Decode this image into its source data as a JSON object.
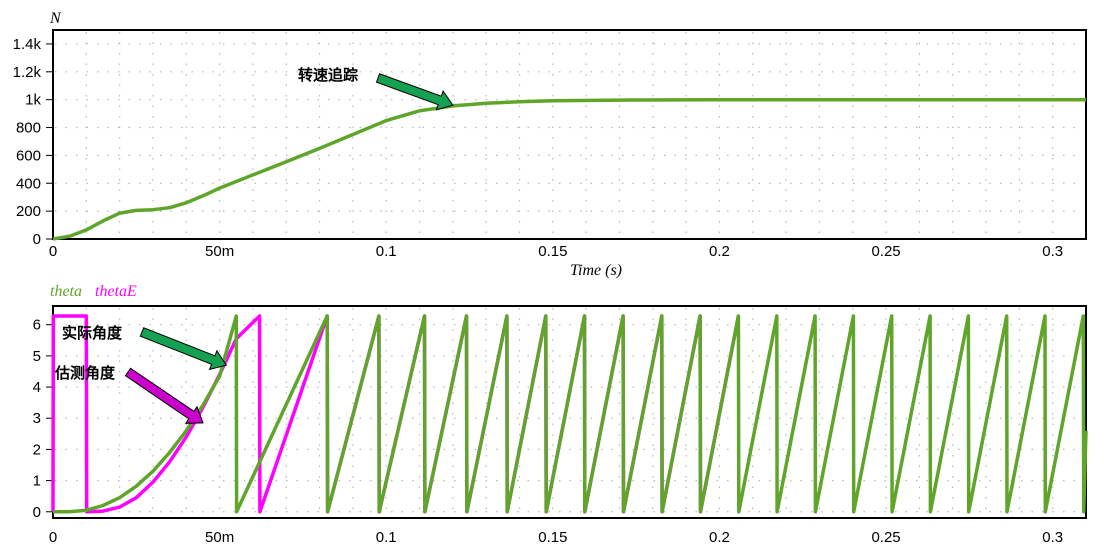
{
  "chart_data": [
    {
      "type": "line",
      "ylabel": "N",
      "xlabel": "Time (s)",
      "xlim": [
        0,
        0.31
      ],
      "ylim": [
        0,
        1500
      ],
      "x_ticks": [
        {
          "value": 0,
          "label": "0"
        },
        {
          "value": 0.05,
          "label": "50m"
        },
        {
          "value": 0.1,
          "label": "0.1"
        },
        {
          "value": 0.15,
          "label": "0.15"
        },
        {
          "value": 0.2,
          "label": "0.2"
        },
        {
          "value": 0.25,
          "label": "0.25"
        },
        {
          "value": 0.3,
          "label": "0.3"
        }
      ],
      "y_ticks": [
        {
          "value": 0,
          "label": "0"
        },
        {
          "value": 200,
          "label": "200"
        },
        {
          "value": 400,
          "label": "400"
        },
        {
          "value": 600,
          "label": "600"
        },
        {
          "value": 800,
          "label": "800"
        },
        {
          "value": 1000,
          "label": "1k"
        },
        {
          "value": 1200,
          "label": "1.2k"
        },
        {
          "value": 1400,
          "label": "1.4k"
        }
      ],
      "grid": "dotted",
      "series": [
        {
          "name": "N",
          "color": "#5fa52a",
          "x": [
            0,
            0.005,
            0.01,
            0.015,
            0.02,
            0.025,
            0.03,
            0.035,
            0.04,
            0.045,
            0.05,
            0.06,
            0.07,
            0.08,
            0.09,
            0.1,
            0.11,
            0.12,
            0.13,
            0.14,
            0.15,
            0.17,
            0.2,
            0.25,
            0.31
          ],
          "y": [
            0,
            20,
            65,
            130,
            185,
            205,
            210,
            225,
            260,
            310,
            365,
            460,
            555,
            650,
            750,
            850,
            920,
            955,
            975,
            985,
            992,
            997,
            1000,
            1000,
            1000
          ]
        }
      ],
      "annotations": [
        {
          "text": "转速追踪",
          "target": [
            0.12,
            960
          ],
          "arrow_color": "#14a152"
        }
      ]
    },
    {
      "type": "line",
      "legend": [
        "theta",
        "thetaE"
      ],
      "legend_position": "top-left",
      "xlim": [
        0,
        0.31
      ],
      "ylim": [
        -0.2,
        6.6
      ],
      "x_ticks": [
        {
          "value": 0,
          "label": "0"
        },
        {
          "value": 0.05,
          "label": "50m"
        },
        {
          "value": 0.1,
          "label": "0.1"
        },
        {
          "value": 0.15,
          "label": "0.15"
        },
        {
          "value": 0.2,
          "label": "0.2"
        },
        {
          "value": 0.25,
          "label": "0.25"
        },
        {
          "value": 0.3,
          "label": "0.3"
        }
      ],
      "y_ticks": [
        {
          "value": 0,
          "label": "0"
        },
        {
          "value": 1,
          "label": "1"
        },
        {
          "value": 2,
          "label": "2"
        },
        {
          "value": 3,
          "label": "3"
        },
        {
          "value": 4,
          "label": "4"
        },
        {
          "value": 5,
          "label": "5"
        },
        {
          "value": 6,
          "label": "6"
        }
      ],
      "grid": "dotted",
      "series": [
        {
          "name": "theta",
          "color": "#5fa52a",
          "x": [
            0,
            0.005,
            0.01,
            0.015,
            0.02,
            0.025,
            0.03,
            0.035,
            0.04,
            0.045,
            0.05,
            0.055,
            0.0551,
            0.0823,
            0.0824,
            0.0978,
            0.0979,
            0.1115,
            0.1116,
            0.1241,
            0.1242,
            0.1362,
            0.1363,
            0.1479,
            0.148,
            0.1595,
            0.1596,
            0.1711,
            0.1712,
            0.1827,
            0.1828,
            0.1942,
            0.1943,
            0.2057,
            0.2058,
            0.2172,
            0.2173,
            0.2287,
            0.2288,
            0.2402,
            0.2403,
            0.2517,
            0.2518,
            0.2632,
            0.2633,
            0.2747,
            0.2748,
            0.2862,
            0.2863,
            0.2977,
            0.2978,
            0.3092,
            0.3093,
            0.31
          ],
          "y": [
            0,
            0,
            0.05,
            0.2,
            0.45,
            0.82,
            1.3,
            1.9,
            2.6,
            3.42,
            4.35,
            6.28,
            0,
            6.28,
            0,
            6.28,
            0,
            6.28,
            0,
            6.28,
            0,
            6.28,
            0,
            6.28,
            0,
            6.28,
            0,
            6.28,
            0,
            6.28,
            0,
            6.28,
            0,
            6.28,
            0,
            6.28,
            0,
            6.28,
            0,
            6.28,
            0,
            6.28,
            0,
            6.28,
            0,
            6.28,
            0,
            6.28,
            0,
            6.28,
            0,
            6.28,
            0,
            2.6
          ]
        },
        {
          "name": "thetaE",
          "color": "#ff00ff",
          "x": [
            0,
            0.0001,
            0.01,
            0.0101,
            0.015,
            0.02,
            0.025,
            0.03,
            0.035,
            0.04,
            0.045,
            0.05,
            0.055,
            0.062,
            0.0621,
            0.0823,
            0.0824,
            0.0978,
            0.0979,
            0.1115,
            0.1116,
            0.1241,
            0.1242,
            0.1362,
            0.1363,
            0.1479,
            0.148,
            0.1595,
            0.1596,
            0.1711,
            0.1712,
            0.1827,
            0.1828,
            0.1942,
            0.1943,
            0.2057
          ],
          "y": [
            0,
            6.28,
            6.28,
            0,
            0.02,
            0.15,
            0.45,
            0.95,
            1.6,
            2.4,
            3.35,
            4.4,
            5.55,
            6.28,
            0,
            6.28,
            0,
            6.28,
            0,
            6.28,
            0,
            6.28,
            0,
            6.28,
            0,
            6.28,
            0,
            6.28,
            0,
            6.28,
            0,
            6.28,
            0,
            6.28,
            0,
            6.28
          ]
        }
      ],
      "annotations": [
        {
          "text": "实际角度",
          "target": [
            0.052,
            4.7
          ],
          "arrow_color": "#14a152"
        },
        {
          "text": "估测角度",
          "target": [
            0.045,
            2.85
          ],
          "arrow_color": "#cc00cc"
        }
      ]
    }
  ]
}
